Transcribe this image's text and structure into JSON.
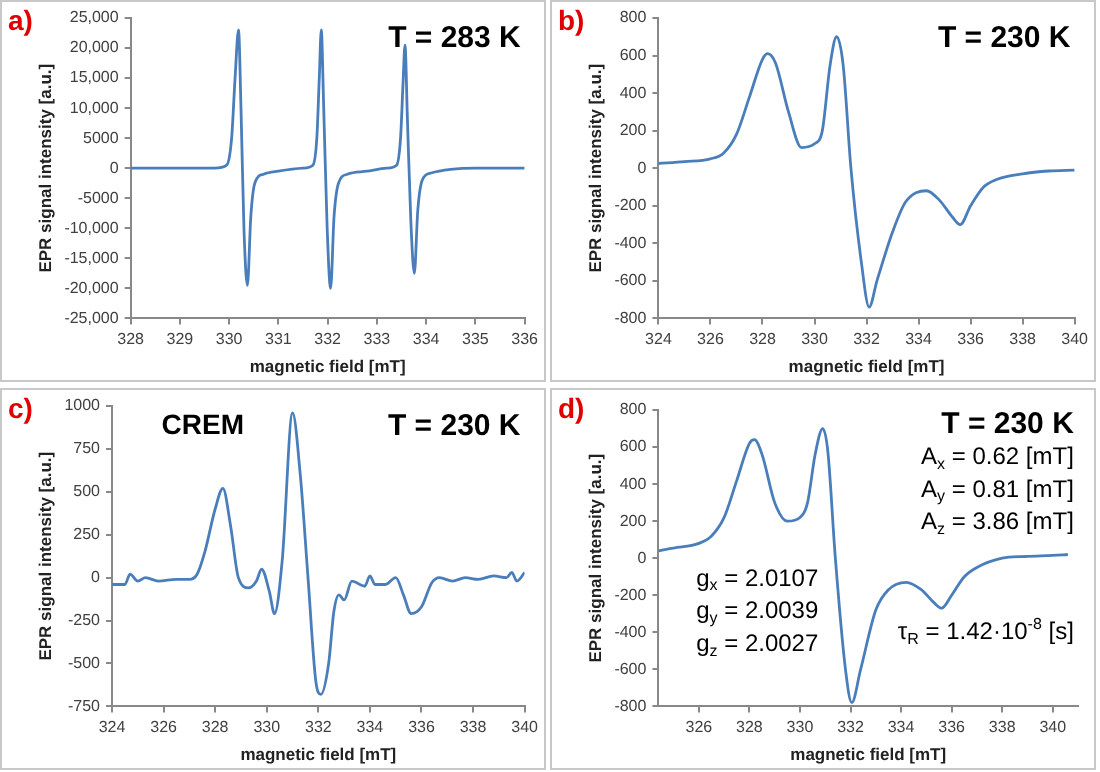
{
  "chart_data": [
    {
      "type": "line",
      "title": "a)",
      "xlabel": "magnetic field [mT]",
      "ylabel": "EPR signal intensity [a.u.]",
      "annotations": [
        "T = 283 K"
      ],
      "color": "#4a7ebb",
      "marker": "none",
      "grid": false,
      "xlim": [
        328,
        336
      ],
      "xticks": [
        328,
        329,
        330,
        331,
        332,
        333,
        334,
        335,
        336
      ],
      "ylim": [
        -25000,
        25000
      ],
      "yticks": [
        {
          "value": -25000,
          "label": "-25,000"
        },
        {
          "value": -20000,
          "label": "-20,000"
        },
        {
          "value": -15000,
          "label": "-15,000"
        },
        {
          "value": -10000,
          "label": "-10,000"
        },
        {
          "value": -5000,
          "label": "-5000"
        },
        0,
        5000,
        {
          "value": 10000,
          "label": "10,000"
        },
        {
          "value": 15000,
          "label": "15,000"
        },
        {
          "value": 20000,
          "label": "20,000"
        },
        {
          "value": 25000,
          "label": "25,000"
        }
      ],
      "x": [
        328,
        329.7,
        329.95,
        330.05,
        330.12,
        330.19,
        330.24,
        330.3,
        330.37,
        330.44,
        330.52,
        330.7,
        331.0,
        331.5,
        331.7,
        331.78,
        331.83,
        331.87,
        331.92,
        331.99,
        332.06,
        332.13,
        332.22,
        332.4,
        332.8,
        333.2,
        333.4,
        333.48,
        333.53,
        333.57,
        333.62,
        333.69,
        333.76,
        333.83,
        333.92,
        334.1,
        334.5,
        335,
        336
      ],
      "values": [
        0,
        0,
        500,
        5000,
        15000,
        23000,
        10000,
        -10000,
        -19500,
        -8000,
        -2500,
        -1000,
        -500,
        0,
        500,
        5000,
        15000,
        23000,
        10000,
        -10000,
        -20000,
        -8000,
        -2500,
        -1000,
        -500,
        0,
        500,
        5000,
        14000,
        20500,
        8000,
        -9000,
        -17500,
        -7000,
        -2000,
        -800,
        -200,
        0,
        0
      ]
    },
    {
      "type": "line",
      "title": "b)",
      "xlabel": "magnetic field [mT]",
      "ylabel": "EPR signal intensity [a.u.]",
      "annotations": [
        "T = 230 K"
      ],
      "color": "#4a7ebb",
      "marker": "none",
      "grid": false,
      "xlim": [
        324,
        340
      ],
      "xticks": [
        324,
        326,
        328,
        330,
        332,
        334,
        336,
        338,
        340
      ],
      "ylim": [
        -800,
        800
      ],
      "yticks": [
        -800,
        -600,
        -400,
        -200,
        0,
        200,
        400,
        600,
        800
      ],
      "x": [
        324,
        325,
        326,
        326.5,
        327,
        327.5,
        328,
        328.2,
        328.5,
        329,
        329.5,
        330,
        330.3,
        330.6,
        330.85,
        331.1,
        331.4,
        331.8,
        332.1,
        332.4,
        333,
        333.5,
        334.3,
        334.8,
        335.3,
        335.6,
        336,
        336.5,
        337,
        338,
        339,
        340
      ],
      "values": [
        25,
        35,
        50,
        80,
        180,
        380,
        580,
        610,
        560,
        300,
        110,
        130,
        200,
        550,
        700,
        550,
        0,
        -500,
        -740,
        -600,
        -340,
        -180,
        -120,
        -170,
        -260,
        -300,
        -200,
        -100,
        -60,
        -30,
        -15,
        -10
      ]
    },
    {
      "type": "line",
      "title": "c)",
      "xlabel": "magnetic field [mT]",
      "ylabel": "EPR signal intensity [a.u.]",
      "annotations": [
        "CREM",
        "T = 230 K"
      ],
      "color": "#4a7ebb",
      "marker": "none",
      "grid": false,
      "xlim": [
        324,
        340
      ],
      "xticks": [
        324,
        326,
        328,
        330,
        332,
        334,
        336,
        338,
        340
      ],
      "ylim": [
        -750,
        1000
      ],
      "yticks": [
        -750,
        -500,
        -250,
        0,
        250,
        500,
        750,
        1000
      ],
      "x": [
        324,
        324.5,
        324.7,
        325,
        325.3,
        325.8,
        326.5,
        327,
        327.3,
        327.6,
        328,
        328.3,
        328.6,
        328.9,
        329.3,
        329.6,
        329.8,
        330.1,
        330.3,
        330.6,
        331,
        331.3,
        331.6,
        331.9,
        332.1,
        332.4,
        332.6,
        332.8,
        333,
        333.3,
        333.8,
        334,
        334.2,
        334.6,
        335,
        335.3,
        335.6,
        336,
        336.4,
        336.7,
        337.2,
        337.7,
        338.2,
        338.8,
        339.3,
        339.5,
        339.7,
        340
      ],
      "values": [
        -40,
        -40,
        20,
        -20,
        0,
        -20,
        -10,
        -10,
        20,
        150,
        400,
        520,
        300,
        0,
        -60,
        -20,
        50,
        -80,
        -210,
        100,
        960,
        600,
        0,
        -600,
        -680,
        -500,
        -200,
        -100,
        -130,
        -20,
        -50,
        10,
        -40,
        -40,
        0,
        -100,
        -210,
        -170,
        -30,
        0,
        -20,
        0,
        -10,
        10,
        0,
        30,
        -20,
        30
      ]
    },
    {
      "type": "line",
      "title": "d)",
      "xlabel": "magnetic field [mT]",
      "ylabel": "EPR signal intensity [a.u.]",
      "annotations": [
        "T = 230 K",
        "A$_{x}$ = 0.62 [mT]",
        "A$_{y}$ = 0.81 [mT]",
        "A$_{z}$ = 3.86 [mT]",
        "g$_{x}$ = 2.0107",
        "g$_{y}$ = 2.0039",
        "g$_{z}$ = 2.0027",
        "τ$_{R}$ = 1.42·10$^{-8}$ [s]"
      ],
      "color": "#4a7ebb",
      "marker": "none",
      "grid": false,
      "xlim": [
        324.4,
        341
      ],
      "xticks": [
        326,
        328,
        330,
        332,
        334,
        336,
        338,
        340
      ],
      "ylim": [
        -800,
        800
      ],
      "yticks": [
        -800,
        -600,
        -400,
        -200,
        0,
        200,
        400,
        600,
        800
      ],
      "x": [
        324.4,
        325,
        326,
        326.5,
        327,
        327.5,
        328,
        328.2,
        328.5,
        329,
        329.5,
        330,
        330.3,
        330.6,
        330.9,
        331.1,
        331.4,
        331.8,
        332.05,
        332.4,
        333,
        333.5,
        334.2,
        334.8,
        335.3,
        335.6,
        336,
        336.5,
        337,
        338,
        339,
        340,
        340.6
      ],
      "values": [
        40,
        55,
        80,
        120,
        220,
        420,
        620,
        640,
        560,
        300,
        200,
        220,
        300,
        560,
        700,
        580,
        0,
        -600,
        -780,
        -600,
        -280,
        -170,
        -130,
        -170,
        -240,
        -270,
        -200,
        -100,
        -50,
        0,
        10,
        15,
        20
      ]
    }
  ]
}
